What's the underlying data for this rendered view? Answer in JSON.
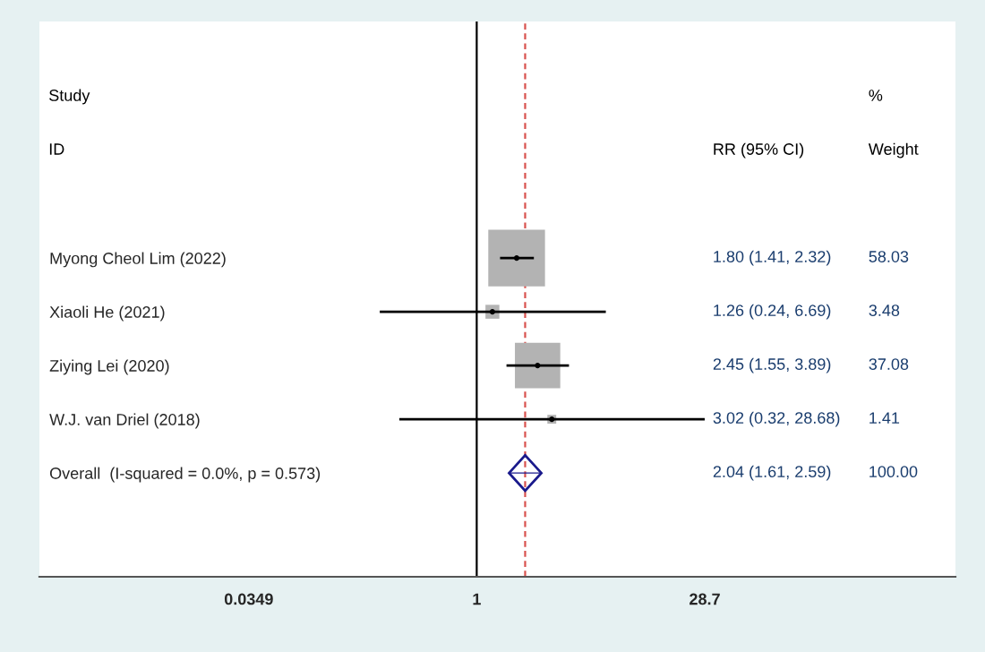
{
  "chart_data": {
    "type": "scatter",
    "orientation": "horizontal",
    "categories": [
      "Myong Cheol Lim (2022)",
      "Xiaoli He (2021)",
      "Ziying Lei (2020)",
      "W.J. van Driel (2018)",
      "Overall  (I-squared = 0.0%, p = 0.573)"
    ],
    "log": "x",
    "xlim": [
      0.0016,
      1150
    ],
    "xticks": [
      0.0349,
      1,
      28.7
    ],
    "grid": false,
    "annotations": [
      "Study",
      "ID",
      "RR (95% CI)",
      "%",
      "Weight",
      "1.80 (1.41, 2.32)",
      "1.26 (0.24, 6.69)",
      "2.45 (1.55, 3.89)",
      "3.02 (0.32, 28.68)",
      "2.04 (1.61, 2.59)",
      "58.03",
      "3.48",
      "37.08",
      "1.41",
      "100.00"
    ],
    "ref_lines": [
      {
        "axis": "x",
        "value": 1,
        "color": "#000000",
        "line_style": "solid"
      },
      {
        "axis": "x",
        "value": 2.04,
        "color": "#d9534f",
        "line_style": "dashed"
      }
    ],
    "series": [
      {
        "color": "#b3b3b3",
        "marker": "square",
        "values": [
          1.8,
          1.26,
          2.45,
          3.02,
          null
        ],
        "errors": [
          [
            1.41,
            2.32
          ],
          [
            0.24,
            6.69
          ],
          [
            1.55,
            3.89
          ],
          [
            0.32,
            28.68
          ],
          null
        ],
        "sizes": [
          1,
          0.06,
          0.639,
          0.0243,
          null
        ]
      },
      {
        "color": "#1a1a8c",
        "marker": "diamond",
        "values": [
          null,
          null,
          null,
          null,
          2.04
        ],
        "errors": [
          null,
          null,
          null,
          null,
          [
            1.61,
            2.59
          ]
        ]
      }
    ]
  }
}
